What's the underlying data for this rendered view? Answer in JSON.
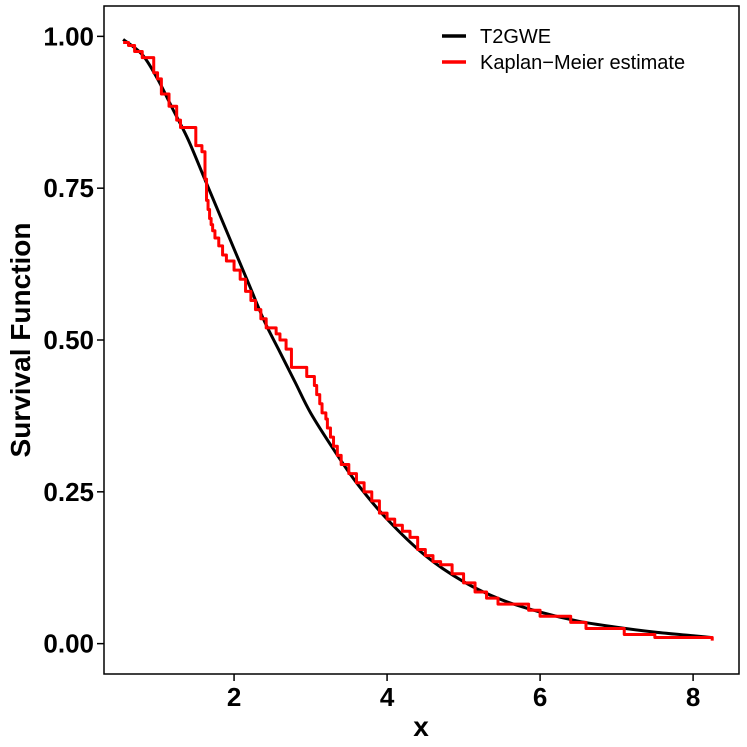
{
  "chart_data": {
    "type": "line",
    "xlabel": "x",
    "ylabel": "Survival Function",
    "xlim": [
      0.3,
      8.6
    ],
    "ylim": [
      -0.05,
      1.05
    ],
    "x_ticks": [
      2,
      4,
      6,
      8
    ],
    "x_tick_labels": [
      "2",
      "4",
      "6",
      "8"
    ],
    "y_ticks": [
      0,
      0.25,
      0.5,
      0.75,
      1
    ],
    "y_tick_labels": [
      "0.00",
      "0.25",
      "0.50",
      "0.75",
      "1.00"
    ],
    "grid": false,
    "legend_position": "top-right",
    "series": [
      {
        "name": "T2GWE",
        "color": "#000000",
        "style": "smooth",
        "x": [
          0.55,
          0.8,
          1.0,
          1.2,
          1.4,
          1.6,
          1.8,
          2.0,
          2.2,
          2.4,
          2.6,
          2.8,
          3.0,
          3.3,
          3.6,
          4.0,
          4.5,
          5.0,
          5.5,
          6.0,
          6.5,
          7.0,
          7.5,
          8.0,
          8.25
        ],
        "y": [
          0.995,
          0.97,
          0.93,
          0.88,
          0.83,
          0.77,
          0.71,
          0.65,
          0.59,
          0.53,
          0.48,
          0.43,
          0.38,
          0.32,
          0.265,
          0.205,
          0.145,
          0.102,
          0.072,
          0.052,
          0.037,
          0.027,
          0.019,
          0.013,
          0.01
        ]
      },
      {
        "name": "Kaplan−Meier estimate",
        "color": "#ff0000",
        "style": "step",
        "x": [
          0.55,
          0.62,
          0.7,
          0.8,
          0.95,
          1.0,
          1.05,
          1.15,
          1.25,
          1.3,
          1.4,
          1.5,
          1.58,
          1.62,
          1.64,
          1.66,
          1.68,
          1.7,
          1.72,
          1.75,
          1.8,
          1.85,
          1.9,
          2.0,
          2.08,
          2.15,
          2.22,
          2.28,
          2.35,
          2.42,
          2.5,
          2.55,
          2.6,
          2.68,
          2.75,
          2.85,
          2.95,
          3.05,
          3.08,
          3.12,
          3.15,
          3.2,
          3.22,
          3.26,
          3.3,
          3.35,
          3.4,
          3.5,
          3.6,
          3.7,
          3.8,
          3.9,
          4.0,
          4.1,
          4.2,
          4.3,
          4.4,
          4.5,
          4.6,
          4.7,
          4.85,
          5.0,
          5.15,
          5.3,
          5.45,
          5.85,
          6.0,
          6.4,
          6.6,
          7.1,
          7.5,
          8.25
        ],
        "y": [
          0.99,
          0.985,
          0.975,
          0.965,
          0.94,
          0.93,
          0.905,
          0.885,
          0.862,
          0.85,
          0.85,
          0.82,
          0.81,
          0.765,
          0.73,
          0.715,
          0.7,
          0.69,
          0.68,
          0.668,
          0.655,
          0.64,
          0.63,
          0.615,
          0.6,
          0.58,
          0.565,
          0.55,
          0.535,
          0.52,
          0.52,
          0.51,
          0.5,
          0.485,
          0.455,
          0.455,
          0.44,
          0.425,
          0.41,
          0.395,
          0.38,
          0.37,
          0.355,
          0.34,
          0.325,
          0.31,
          0.295,
          0.28,
          0.265,
          0.25,
          0.235,
          0.215,
          0.205,
          0.195,
          0.185,
          0.175,
          0.155,
          0.145,
          0.135,
          0.13,
          0.115,
          0.1,
          0.085,
          0.075,
          0.065,
          0.055,
          0.045,
          0.035,
          0.025,
          0.015,
          0.01,
          0.005
        ]
      }
    ]
  }
}
